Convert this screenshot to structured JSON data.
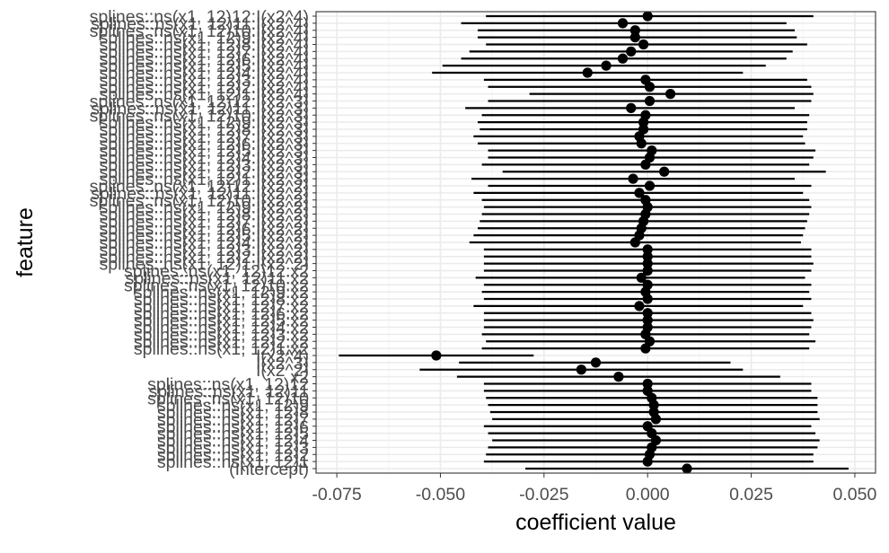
{
  "chart_data": {
    "type": "scatter",
    "title": "",
    "xlabel": "coefficient value",
    "ylabel": "feature",
    "xlim": [
      -0.08,
      0.055
    ],
    "x_ticks": [
      -0.075,
      -0.05,
      -0.025,
      0.0,
      0.025,
      0.05
    ],
    "x_tick_labels": [
      "-0.075",
      "-0.050",
      "-0.025",
      "0.000",
      "0.025",
      "0.050"
    ],
    "grid": true,
    "legend": "none",
    "colors": {
      "panel_border": "#333333",
      "grid_major": "#ebebeb",
      "grid_minor": "#f5f5f5",
      "point": "#000000",
      "text": "#4d4d4d"
    },
    "points": [
      {
        "feature": "splines::ns(x1, 12)12:I(x2^4)",
        "estimate": 0.0,
        "low": -0.039,
        "high": 0.04
      },
      {
        "feature": "splines::ns(x1, 12)11:I(x2^4)",
        "estimate": -0.006,
        "low": -0.045,
        "high": 0.0335
      },
      {
        "feature": "splines::ns(x1, 12)10:I(x2^4)",
        "estimate": -0.003,
        "low": -0.041,
        "high": 0.0355
      },
      {
        "feature": "splines::ns(x1, 12)9:I(x2^4)",
        "estimate": -0.003,
        "low": -0.041,
        "high": 0.036
      },
      {
        "feature": "splines::ns(x1, 12)8:I(x2^4)",
        "estimate": -0.001,
        "low": -0.039,
        "high": 0.0385
      },
      {
        "feature": "splines::ns(x1, 12)7:I(x2^4)",
        "estimate": -0.004,
        "low": -0.043,
        "high": 0.035
      },
      {
        "feature": "splines::ns(x1, 12)6:I(x2^4)",
        "estimate": -0.006,
        "low": -0.045,
        "high": 0.0335
      },
      {
        "feature": "splines::ns(x1, 12)5:I(x2^4)",
        "estimate": -0.01,
        "low": -0.0495,
        "high": 0.0285
      },
      {
        "feature": "splines::ns(x1, 12)4:I(x2^4)",
        "estimate": -0.0145,
        "low": -0.052,
        "high": 0.023
      },
      {
        "feature": "splines::ns(x1, 12)3:I(x2^4)",
        "estimate": -0.0005,
        "low": -0.0395,
        "high": 0.0385
      },
      {
        "feature": "splines::ns(x1, 12)2:I(x2^4)",
        "estimate": 0.0005,
        "low": -0.0385,
        "high": 0.0395
      },
      {
        "feature": "splines::ns(x1, 12)1:I(x2^4)",
        "estimate": 0.0055,
        "low": -0.0285,
        "high": 0.04
      },
      {
        "feature": "splines::ns(x1, 12)12:I(x2^3)",
        "estimate": 0.0005,
        "low": -0.0385,
        "high": 0.0395
      },
      {
        "feature": "splines::ns(x1, 12)11:I(x2^3)",
        "estimate": -0.004,
        "low": -0.044,
        "high": 0.0355
      },
      {
        "feature": "splines::ns(x1, 12)10:I(x2^3)",
        "estimate": -0.0005,
        "low": -0.04,
        "high": 0.039
      },
      {
        "feature": "splines::ns(x1, 12)9:I(x2^3)",
        "estimate": -0.001,
        "low": -0.041,
        "high": 0.0385
      },
      {
        "feature": "splines::ns(x1, 12)8:I(x2^3)",
        "estimate": -0.001,
        "low": -0.0405,
        "high": 0.0385
      },
      {
        "feature": "splines::ns(x1, 12)7:I(x2^3)",
        "estimate": -0.002,
        "low": -0.042,
        "high": 0.0375
      },
      {
        "feature": "splines::ns(x1, 12)6:I(x2^3)",
        "estimate": -0.0015,
        "low": -0.041,
        "high": 0.038
      },
      {
        "feature": "splines::ns(x1, 12)5:I(x2^3)",
        "estimate": 0.001,
        "low": -0.0385,
        "high": 0.0405
      },
      {
        "feature": "splines::ns(x1, 12)4:I(x2^3)",
        "estimate": 0.0005,
        "low": -0.0385,
        "high": 0.04
      },
      {
        "feature": "splines::ns(x1, 12)3:I(x2^3)",
        "estimate": -0.0005,
        "low": -0.04,
        "high": 0.039
      },
      {
        "feature": "splines::ns(x1, 12)2:I(x2^3)",
        "estimate": 0.004,
        "low": -0.035,
        "high": 0.043
      },
      {
        "feature": "splines::ns(x1, 12)1:I(x2^3)",
        "estimate": -0.0035,
        "low": -0.0425,
        "high": 0.0355
      },
      {
        "feature": "splines::ns(x1, 12)12:I(x2^2)",
        "estimate": 0.0005,
        "low": -0.0385,
        "high": 0.0395
      },
      {
        "feature": "splines::ns(x1, 12)11:I(x2^2)",
        "estimate": -0.002,
        "low": -0.042,
        "high": 0.0375
      },
      {
        "feature": "splines::ns(x1, 12)10:I(x2^2)",
        "estimate": -0.0005,
        "low": -0.04,
        "high": 0.039
      },
      {
        "feature": "splines::ns(x1, 12)9:I(x2^2)",
        "estimate": 0.0,
        "low": -0.0395,
        "high": 0.0395
      },
      {
        "feature": "splines::ns(x1, 12)8:I(x2^2)",
        "estimate": -0.0005,
        "low": -0.04,
        "high": 0.039
      },
      {
        "feature": "splines::ns(x1, 12)7:I(x2^2)",
        "estimate": -0.001,
        "low": -0.0405,
        "high": 0.0385
      },
      {
        "feature": "splines::ns(x1, 12)6:I(x2^2)",
        "estimate": -0.0015,
        "low": -0.041,
        "high": 0.038
      },
      {
        "feature": "splines::ns(x1, 12)5:I(x2^2)",
        "estimate": -0.002,
        "low": -0.042,
        "high": 0.0375
      },
      {
        "feature": "splines::ns(x1, 12)4:I(x2^2)",
        "estimate": -0.003,
        "low": -0.043,
        "high": 0.037
      },
      {
        "feature": "splines::ns(x1, 12)3:I(x2^2)",
        "estimate": 0.0,
        "low": -0.0395,
        "high": 0.0395
      },
      {
        "feature": "splines::ns(x1, 12)2:I(x2^2)",
        "estimate": 0.0,
        "low": -0.0395,
        "high": 0.0395
      },
      {
        "feature": "splines::ns(x1, 12)1:I(x2^2)",
        "estimate": 0.0,
        "low": -0.0395,
        "high": 0.04
      },
      {
        "feature": "splines::ns(x1, 12)12:x2",
        "estimate": 0.0,
        "low": -0.0395,
        "high": 0.0395
      },
      {
        "feature": "splines::ns(x1, 12)11:x2",
        "estimate": -0.0015,
        "low": -0.0415,
        "high": 0.038
      },
      {
        "feature": "splines::ns(x1, 12)10:x2",
        "estimate": 0.0,
        "low": -0.0395,
        "high": 0.0395
      },
      {
        "feature": "splines::ns(x1, 12)9:x2",
        "estimate": -0.0005,
        "low": -0.04,
        "high": 0.039
      },
      {
        "feature": "splines::ns(x1, 12)8:x2",
        "estimate": 0.0,
        "low": -0.0395,
        "high": 0.0395
      },
      {
        "feature": "splines::ns(x1, 12)7:x2",
        "estimate": -0.002,
        "low": -0.042,
        "high": 0.0375
      },
      {
        "feature": "splines::ns(x1, 12)6:x2",
        "estimate": 0.0,
        "low": -0.0395,
        "high": 0.0395
      },
      {
        "feature": "splines::ns(x1, 12)5:x2",
        "estimate": 0.0,
        "low": -0.0395,
        "high": 0.04
      },
      {
        "feature": "splines::ns(x1, 12)4:x2",
        "estimate": 0.0,
        "low": -0.0395,
        "high": 0.0395
      },
      {
        "feature": "splines::ns(x1, 12)3:x2",
        "estimate": -0.0005,
        "low": -0.04,
        "high": 0.039
      },
      {
        "feature": "splines::ns(x1, 12)2:x2",
        "estimate": 0.0005,
        "low": -0.039,
        "high": 0.0405
      },
      {
        "feature": "splines::ns(x1, 12)1:x2",
        "estimate": -0.0005,
        "low": -0.04,
        "high": 0.039
      },
      {
        "feature": "I(x2^4)",
        "estimate": -0.051,
        "low": -0.0745,
        "high": -0.0275
      },
      {
        "feature": "I(x2^3)",
        "estimate": -0.0125,
        "low": -0.0455,
        "high": 0.02
      },
      {
        "feature": "I(x2^2)",
        "estimate": -0.016,
        "low": -0.055,
        "high": 0.023
      },
      {
        "feature": "x2",
        "estimate": -0.007,
        "low": -0.046,
        "high": 0.032
      },
      {
        "feature": "splines::ns(x1, 12)12",
        "estimate": 0.0,
        "low": -0.0395,
        "high": 0.0395
      },
      {
        "feature": "splines::ns(x1, 12)11",
        "estimate": 0.0,
        "low": -0.0395,
        "high": 0.0395
      },
      {
        "feature": "splines::ns(x1, 12)10",
        "estimate": 0.001,
        "low": -0.039,
        "high": 0.041
      },
      {
        "feature": "splines::ns(x1, 12)9",
        "estimate": 0.0015,
        "low": -0.0385,
        "high": 0.041
      },
      {
        "feature": "splines::ns(x1, 12)8",
        "estimate": 0.0015,
        "low": -0.038,
        "high": 0.041
      },
      {
        "feature": "splines::ns(x1, 12)7",
        "estimate": 0.002,
        "low": -0.0375,
        "high": 0.0415
      },
      {
        "feature": "splines::ns(x1, 12)6",
        "estimate": 0.0,
        "low": -0.0395,
        "high": 0.0395
      },
      {
        "feature": "splines::ns(x1, 12)5",
        "estimate": 0.001,
        "low": -0.0385,
        "high": 0.0405
      },
      {
        "feature": "splines::ns(x1, 12)4",
        "estimate": 0.002,
        "low": -0.0375,
        "high": 0.0415
      },
      {
        "feature": "splines::ns(x1, 12)3",
        "estimate": 0.001,
        "low": -0.0385,
        "high": 0.041
      },
      {
        "feature": "splines::ns(x1, 12)2",
        "estimate": 0.0005,
        "low": -0.039,
        "high": 0.04
      },
      {
        "feature": "splines::ns(x1, 12)1",
        "estimate": 0.0,
        "low": -0.0395,
        "high": 0.04
      },
      {
        "feature": "(Intercept)",
        "estimate": 0.0095,
        "low": -0.0295,
        "high": 0.0485
      }
    ]
  }
}
